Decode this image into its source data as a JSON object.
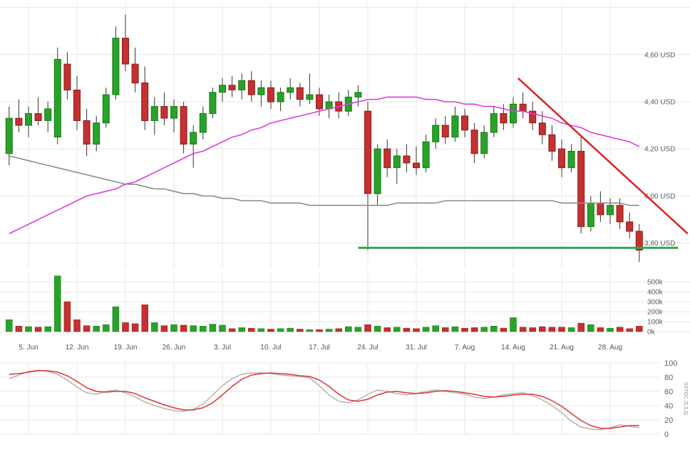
{
  "chart_data": {
    "type": "candlestick",
    "panels": [
      "price",
      "volume",
      "stochastic"
    ],
    "price_axis": [
      {
        "label": "",
        "value": 4.8
      },
      {
        "label": "4,60 USD",
        "value": 4.6
      },
      {
        "label": "4,40 USD",
        "value": 4.4
      },
      {
        "label": "4,20 USD",
        "value": 4.2
      },
      {
        "label": "4,00 USD",
        "value": 4.0
      },
      {
        "label": "3,80 USD",
        "value": 3.8
      }
    ],
    "volume_axis": [
      {
        "label": "500k",
        "value": 500
      },
      {
        "label": "400k",
        "value": 400
      },
      {
        "label": "300k",
        "value": 300
      },
      {
        "label": "200k",
        "value": 200
      },
      {
        "label": "100k",
        "value": 100
      },
      {
        "label": "0k",
        "value": 0
      }
    ],
    "stoch_axis": [
      {
        "label": "100",
        "value": 100
      },
      {
        "label": "80",
        "value": 80
      },
      {
        "label": "60",
        "value": 60
      },
      {
        "label": "40",
        "value": 40
      },
      {
        "label": "20",
        "value": 20
      },
      {
        "label": "0",
        "value": 0
      }
    ],
    "stoch_label": "SSTOC (5,3,3)",
    "x_labels": [
      {
        "label": "5. Jun",
        "index": 2
      },
      {
        "label": "12. Jun",
        "index": 7
      },
      {
        "label": "19. Jun",
        "index": 12
      },
      {
        "label": "26. Jun",
        "index": 17
      },
      {
        "label": "3. Jul",
        "index": 22
      },
      {
        "label": "10. Jul",
        "index": 27
      },
      {
        "label": "17. Jul",
        "index": 32
      },
      {
        "label": "24. Jul",
        "index": 37
      },
      {
        "label": "31. Jul",
        "index": 42
      },
      {
        "label": "7. Aug",
        "index": 47
      },
      {
        "label": "14. Aug",
        "index": 52
      },
      {
        "label": "21. Aug",
        "index": 57
      },
      {
        "label": "28. Aug",
        "index": 62
      }
    ],
    "ohlcv": [
      [
        4.18,
        4.38,
        4.13,
        4.33,
        120
      ],
      [
        4.33,
        4.41,
        4.27,
        4.3,
        55
      ],
      [
        4.3,
        4.38,
        4.25,
        4.35,
        50
      ],
      [
        4.35,
        4.42,
        4.3,
        4.32,
        45
      ],
      [
        4.32,
        4.4,
        4.27,
        4.37,
        50
      ],
      [
        4.25,
        4.63,
        4.22,
        4.58,
        560
      ],
      [
        4.56,
        4.61,
        4.41,
        4.45,
        300
      ],
      [
        4.45,
        4.51,
        4.28,
        4.32,
        120
      ],
      [
        4.32,
        4.37,
        4.17,
        4.22,
        60
      ],
      [
        4.22,
        4.34,
        4.19,
        4.31,
        55
      ],
      [
        4.31,
        4.46,
        4.29,
        4.43,
        70
      ],
      [
        4.43,
        4.72,
        4.41,
        4.67,
        250
      ],
      [
        4.67,
        4.77,
        4.53,
        4.56,
        90
      ],
      [
        4.56,
        4.63,
        4.44,
        4.48,
        80
      ],
      [
        4.48,
        4.55,
        4.28,
        4.32,
        270
      ],
      [
        4.32,
        4.42,
        4.26,
        4.38,
        90
      ],
      [
        4.38,
        4.44,
        4.3,
        4.33,
        60
      ],
      [
        4.33,
        4.41,
        4.27,
        4.38,
        70
      ],
      [
        4.38,
        4.4,
        4.18,
        4.22,
        65
      ],
      [
        4.22,
        4.3,
        4.12,
        4.27,
        60
      ],
      [
        4.27,
        4.38,
        4.24,
        4.35,
        55
      ],
      [
        4.35,
        4.46,
        4.33,
        4.44,
        75
      ],
      [
        4.44,
        4.5,
        4.4,
        4.47,
        65
      ],
      [
        4.47,
        4.51,
        4.42,
        4.45,
        30
      ],
      [
        4.45,
        4.52,
        4.41,
        4.49,
        40
      ],
      [
        4.49,
        4.53,
        4.4,
        4.43,
        35
      ],
      [
        4.43,
        4.49,
        4.38,
        4.46,
        30
      ],
      [
        4.46,
        4.49,
        4.37,
        4.4,
        25
      ],
      [
        4.4,
        4.46,
        4.36,
        4.44,
        30
      ],
      [
        4.44,
        4.5,
        4.41,
        4.46,
        35
      ],
      [
        4.46,
        4.48,
        4.38,
        4.41,
        25
      ],
      [
        4.41,
        4.52,
        4.39,
        4.43,
        20
      ],
      [
        4.43,
        4.46,
        4.34,
        4.37,
        20
      ],
      [
        4.37,
        4.43,
        4.33,
        4.4,
        25
      ],
      [
        4.4,
        4.44,
        4.33,
        4.36,
        30
      ],
      [
        4.36,
        4.45,
        4.34,
        4.42,
        50
      ],
      [
        4.42,
        4.47,
        4.38,
        4.44,
        45
      ],
      [
        4.36,
        4.4,
        3.77,
        4.01,
        70
      ],
      [
        4.01,
        4.22,
        3.96,
        4.2,
        55
      ],
      [
        4.2,
        4.24,
        4.08,
        4.12,
        40
      ],
      [
        4.12,
        4.2,
        4.05,
        4.17,
        45
      ],
      [
        4.17,
        4.22,
        4.1,
        4.14,
        35
      ],
      [
        4.14,
        4.21,
        4.09,
        4.12,
        30
      ],
      [
        4.12,
        4.26,
        4.1,
        4.23,
        45
      ],
      [
        4.23,
        4.33,
        4.2,
        4.3,
        60
      ],
      [
        4.3,
        4.34,
        4.22,
        4.25,
        40
      ],
      [
        4.25,
        4.38,
        4.23,
        4.34,
        50
      ],
      [
        4.34,
        4.37,
        4.25,
        4.28,
        35
      ],
      [
        4.28,
        4.31,
        4.14,
        4.18,
        40
      ],
      [
        4.18,
        4.3,
        4.16,
        4.27,
        45
      ],
      [
        4.27,
        4.38,
        4.25,
        4.35,
        55
      ],
      [
        4.35,
        4.39,
        4.28,
        4.31,
        35
      ],
      [
        4.31,
        4.42,
        4.29,
        4.39,
        140
      ],
      [
        4.39,
        4.44,
        4.33,
        4.36,
        45
      ],
      [
        4.36,
        4.4,
        4.28,
        4.31,
        40
      ],
      [
        4.31,
        4.36,
        4.22,
        4.26,
        50
      ],
      [
        4.26,
        4.3,
        4.15,
        4.19,
        45
      ],
      [
        4.2,
        4.24,
        4.08,
        4.12,
        45
      ],
      [
        4.12,
        4.22,
        4.1,
        4.19,
        40
      ],
      [
        4.19,
        4.25,
        3.84,
        3.87,
        85
      ],
      [
        3.87,
        4.0,
        3.85,
        3.97,
        70
      ],
      [
        3.97,
        4.02,
        3.89,
        3.92,
        40
      ],
      [
        3.92,
        3.99,
        3.88,
        3.96,
        35
      ],
      [
        3.96,
        3.99,
        3.86,
        3.89,
        45
      ],
      [
        3.89,
        3.93,
        3.82,
        3.85,
        30
      ],
      [
        3.85,
        3.88,
        3.72,
        3.77,
        55
      ]
    ],
    "ma_fast": [
      3.84,
      3.86,
      3.88,
      3.9,
      3.92,
      3.94,
      3.96,
      3.98,
      4.0,
      4.01,
      4.02,
      4.03,
      4.05,
      4.06,
      4.08,
      4.1,
      4.12,
      4.14,
      4.16,
      4.18,
      4.19,
      4.21,
      4.23,
      4.25,
      4.26,
      4.28,
      4.29,
      4.31,
      4.32,
      4.33,
      4.34,
      4.35,
      4.36,
      4.37,
      4.38,
      4.39,
      4.4,
      4.41,
      4.41,
      4.42,
      4.42,
      4.42,
      4.42,
      4.41,
      4.41,
      4.4,
      4.4,
      4.39,
      4.39,
      4.38,
      4.38,
      4.37,
      4.36,
      4.36,
      4.35,
      4.34,
      4.33,
      4.31,
      4.3,
      4.29,
      4.27,
      4.26,
      4.25,
      4.24,
      4.23,
      4.21
    ],
    "ma_slow": [
      4.17,
      4.16,
      4.15,
      4.14,
      4.13,
      4.12,
      4.11,
      4.1,
      4.09,
      4.08,
      4.07,
      4.06,
      4.05,
      4.05,
      4.04,
      4.03,
      4.03,
      4.02,
      4.01,
      4.01,
      4.0,
      4.0,
      3.99,
      3.99,
      3.98,
      3.98,
      3.98,
      3.97,
      3.97,
      3.97,
      3.97,
      3.96,
      3.96,
      3.96,
      3.96,
      3.96,
      3.96,
      3.96,
      3.96,
      3.96,
      3.97,
      3.97,
      3.97,
      3.97,
      3.97,
      3.98,
      3.98,
      3.98,
      3.98,
      3.98,
      3.98,
      3.98,
      3.98,
      3.98,
      3.98,
      3.98,
      3.98,
      3.97,
      3.97,
      3.97,
      3.97,
      3.97,
      3.97,
      3.97,
      3.96,
      3.96
    ],
    "stoch_k": [
      78,
      83,
      88,
      90,
      88,
      84,
      76,
      66,
      58,
      56,
      60,
      62,
      58,
      52,
      45,
      40,
      36,
      33,
      32,
      35,
      42,
      55,
      68,
      78,
      84,
      86,
      86,
      85,
      83,
      82,
      81,
      79,
      68,
      55,
      46,
      44,
      48,
      56,
      62,
      60,
      57,
      55,
      57,
      60,
      62,
      60,
      58,
      56,
      52,
      50,
      52,
      55,
      57,
      58,
      54,
      48,
      40,
      30,
      18,
      10,
      7,
      6,
      9,
      13,
      11,
      9
    ],
    "stoch_d": [
      84,
      85,
      87,
      89,
      89,
      87,
      82,
      74,
      65,
      60,
      59,
      60,
      60,
      57,
      51,
      46,
      41,
      37,
      34,
      34,
      37,
      44,
      55,
      67,
      77,
      83,
      85,
      86,
      85,
      84,
      82,
      81,
      76,
      67,
      56,
      48,
      46,
      49,
      55,
      59,
      60,
      58,
      57,
      58,
      60,
      61,
      60,
      58,
      56,
      53,
      52,
      53,
      55,
      56,
      56,
      53,
      47,
      39,
      29,
      19,
      12,
      8,
      8,
      10,
      12,
      12
    ],
    "trendline": {
      "i1": 52.5,
      "p1": 4.5,
      "i2": 70,
      "p2": 3.84
    },
    "support_line": {
      "price": 3.78,
      "i1": 36,
      "i2": 69
    },
    "colors": {
      "up": "#2aa22a",
      "up_border": "#117c11",
      "down": "#c53030",
      "down_border": "#8e1b1b",
      "wick": "#333333",
      "ma_fast": "#dd3cdd",
      "ma_slow": "#8c8c8c",
      "trend": "#dd2222",
      "support": "#2aa84f",
      "stoch_k": "#b4b4b4",
      "stoch_d": "#e23434",
      "grid": "#e7e7e7",
      "label": "#606060"
    }
  }
}
